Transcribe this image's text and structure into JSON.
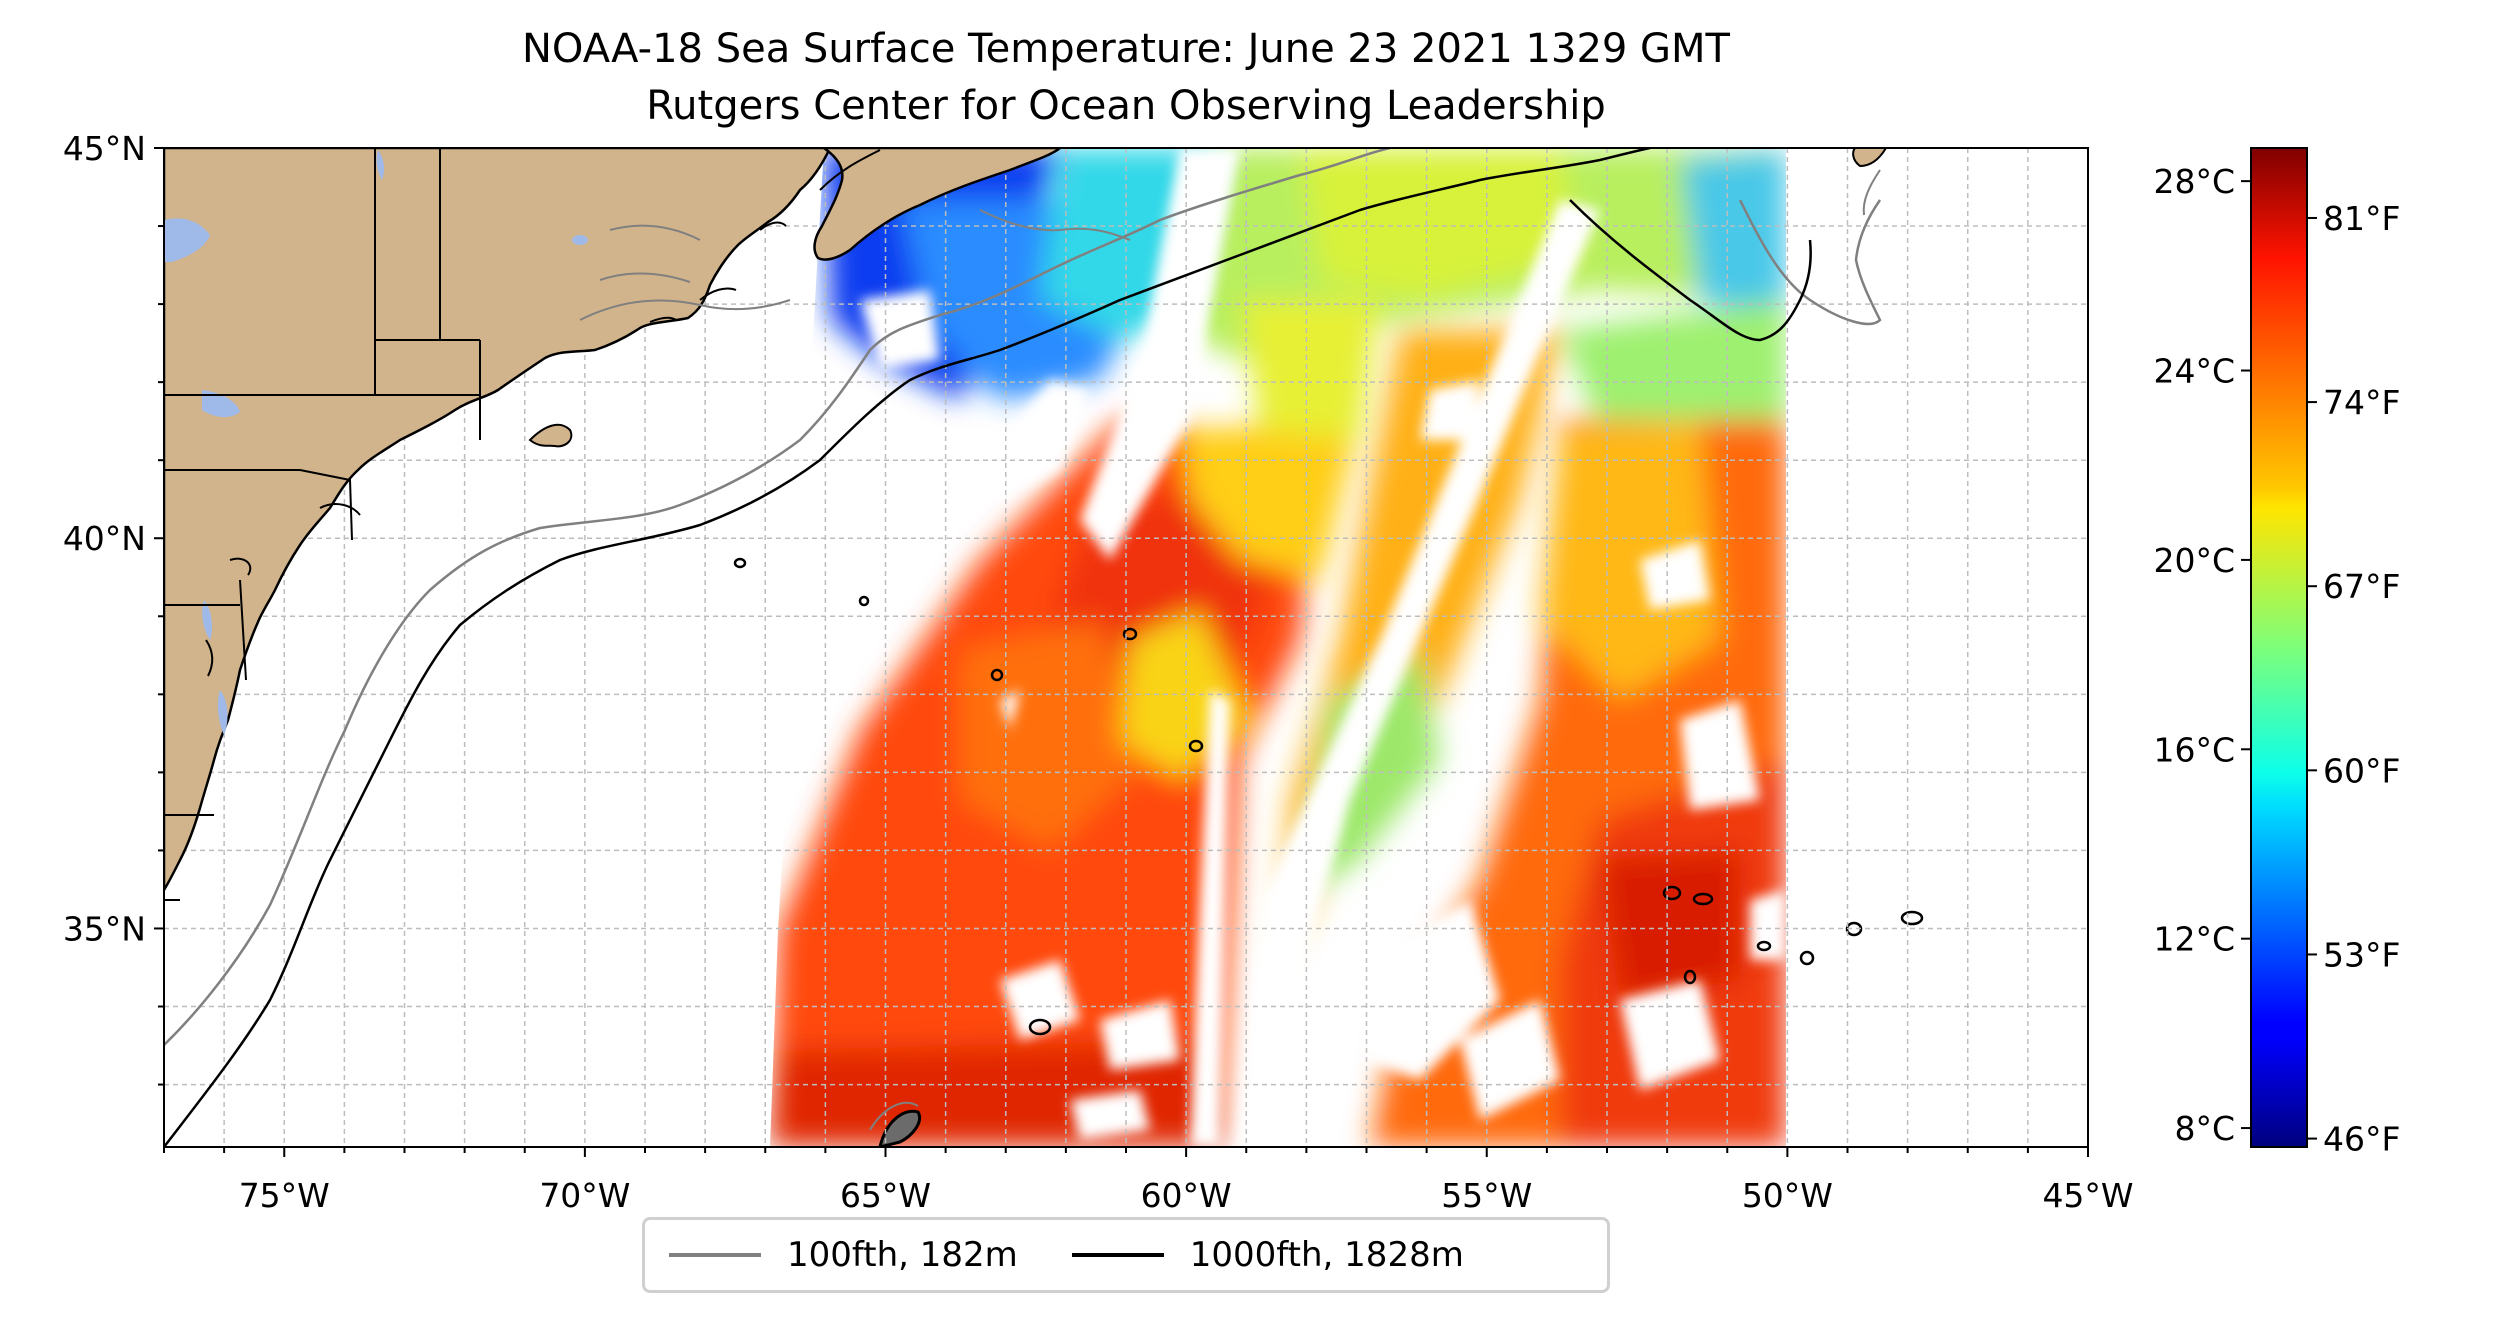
{
  "title": {
    "line1": "NOAA-18 Sea Surface Temperature: June 23 2021 1329 GMT",
    "line2": "Rutgers Center for Ocean Observing Leadership"
  },
  "map": {
    "lon_range": [
      -77,
      -45
    ],
    "lat_range": [
      32.2,
      45
    ],
    "lon_ticks": [
      {
        "lon": -75,
        "label": "75°W"
      },
      {
        "lon": -70,
        "label": "70°W"
      },
      {
        "lon": -65,
        "label": "65°W"
      },
      {
        "lon": -60,
        "label": "60°W"
      },
      {
        "lon": -55,
        "label": "55°W"
      },
      {
        "lon": -50,
        "label": "50°W"
      },
      {
        "lon": -45,
        "label": "45°W"
      }
    ],
    "lat_ticks": [
      {
        "lat": 45,
        "label": "45°N"
      },
      {
        "lat": 40,
        "label": "40°N"
      },
      {
        "lat": 35,
        "label": "35°N"
      }
    ],
    "gridlines": true,
    "colors": {
      "land": "#d2b48c",
      "lakes": "#9fb9e8",
      "grid": "#bdbdbd",
      "no_data": "#ffffff"
    },
    "swath_lon_extent": [
      -67,
      -50
    ]
  },
  "colorbar": {
    "colormap": "jet",
    "min_c": 7.6,
    "max_c": 28.7,
    "celsius_ticks": [
      {
        "value": 28,
        "label": "28°C"
      },
      {
        "value": 24,
        "label": "24°C"
      },
      {
        "value": 20,
        "label": "20°C"
      },
      {
        "value": 16,
        "label": "16°C"
      },
      {
        "value": 12,
        "label": "12°C"
      },
      {
        "value": 8,
        "label": "8°C"
      }
    ],
    "fahrenheit_ticks": [
      {
        "value": 81,
        "label": "81°F"
      },
      {
        "value": 74,
        "label": "74°F"
      },
      {
        "value": 67,
        "label": "67°F"
      },
      {
        "value": 60,
        "label": "60°F"
      },
      {
        "value": 53,
        "label": "53°F"
      },
      {
        "value": 46,
        "label": "46°F"
      }
    ]
  },
  "legend": {
    "entries": [
      {
        "label": "100fth, 182m",
        "color": "#808080"
      },
      {
        "label": "1000fth, 1828m",
        "color": "#000000"
      }
    ]
  }
}
